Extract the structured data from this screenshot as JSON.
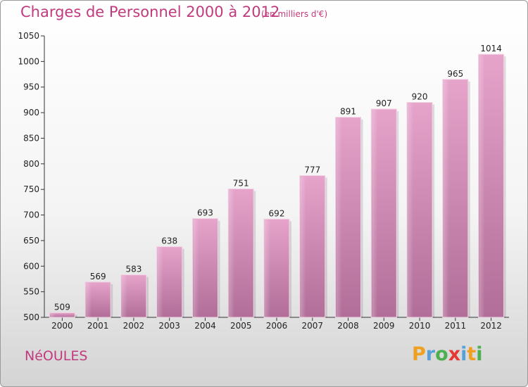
{
  "chart_data": {
    "type": "bar",
    "title": "Charges de Personnel 2000 à 2012",
    "subtitle": "(en milliers d'€)",
    "categories": [
      "2000",
      "2001",
      "2002",
      "2003",
      "2004",
      "2005",
      "2006",
      "2007",
      "2008",
      "2009",
      "2010",
      "2011",
      "2012"
    ],
    "values": [
      509,
      569,
      583,
      638,
      693,
      751,
      692,
      777,
      891,
      907,
      920,
      965,
      1014
    ],
    "ylim": [
      500,
      1050
    ],
    "yticks": [
      500,
      550,
      600,
      650,
      700,
      750,
      800,
      850,
      900,
      950,
      1000,
      1050
    ],
    "grid": false,
    "bar_color_top": "#e6a4cb",
    "bar_color_bottom": "#b06e98"
  },
  "commune": "NéOULES",
  "logo": {
    "letters": [
      "P",
      "r",
      "o",
      "x",
      "i",
      "t",
      "i"
    ],
    "colors": [
      "#f0a020",
      "#5aa0d8",
      "#4caf50",
      "#e53935",
      "#5aa0d8",
      "#f0a020",
      "#4caf50"
    ]
  }
}
